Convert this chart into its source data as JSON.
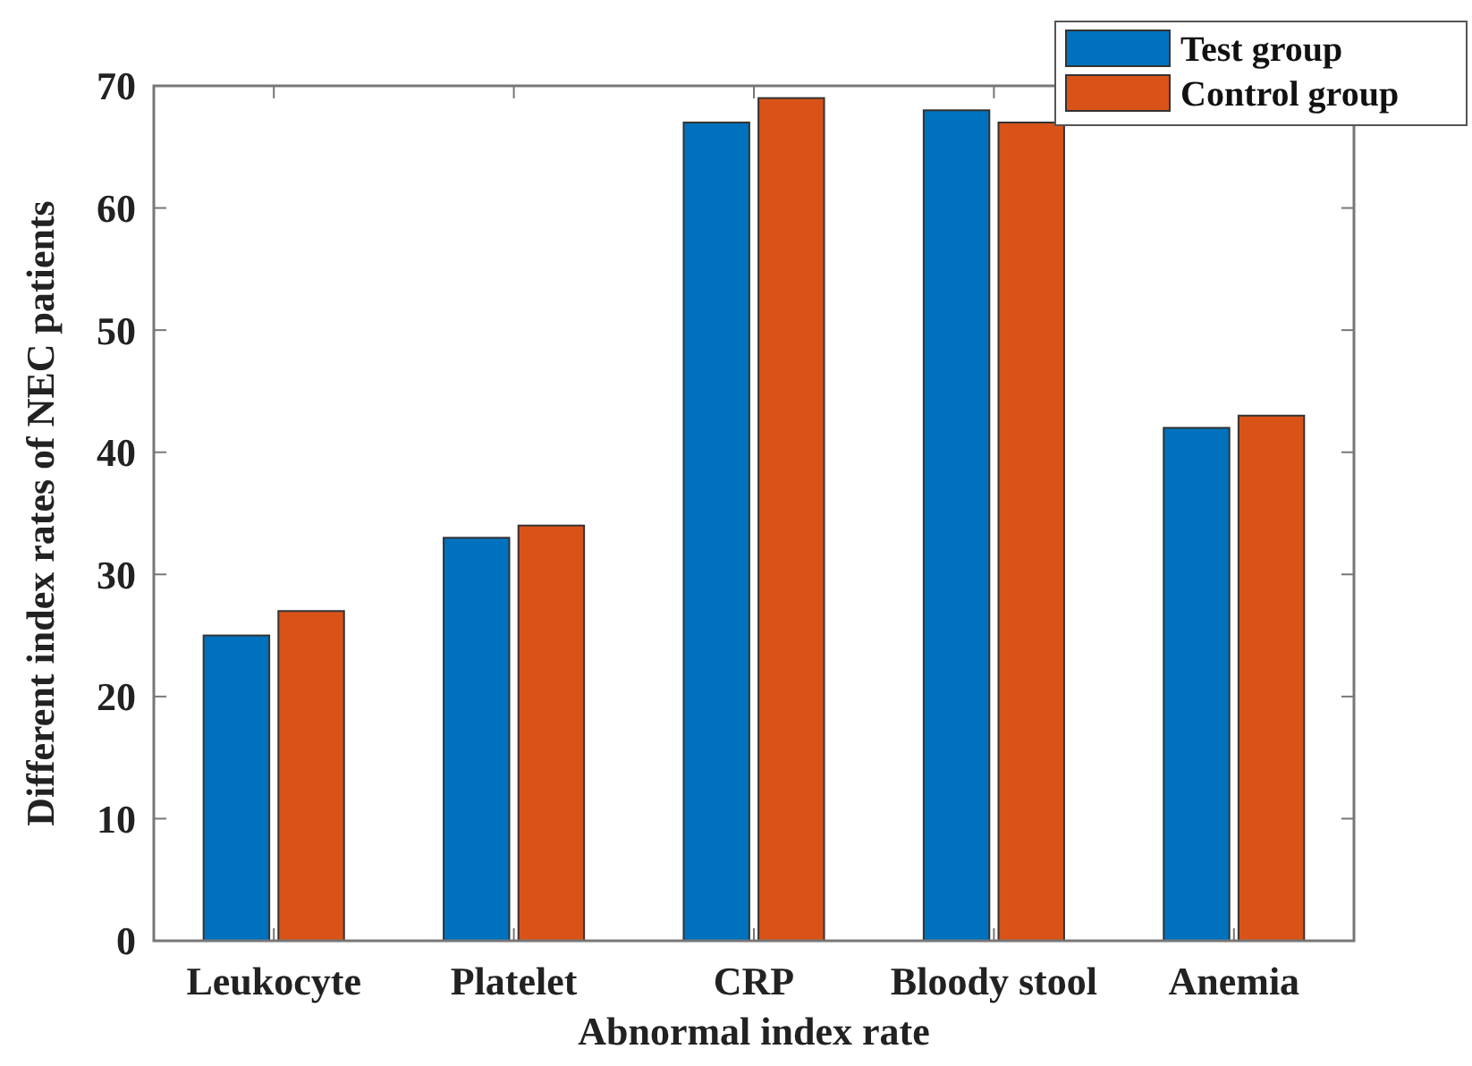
{
  "chart_data": {
    "type": "bar",
    "xlabel": "Abnormal index rate",
    "ylabel": "Different index rates of NEC patients",
    "categories": [
      "Leukocyte",
      "Platelet",
      "CRP",
      "Bloody stool",
      "Anemia"
    ],
    "series": [
      {
        "name": "Test group",
        "color": "#0072bd",
        "values": [
          25,
          33,
          67,
          68,
          42
        ]
      },
      {
        "name": "Control group",
        "color": "#d95319",
        "values": [
          27,
          34,
          69,
          67,
          43
        ]
      }
    ],
    "ylim": [
      0,
      70
    ],
    "yticks": [
      0,
      10,
      20,
      30,
      40,
      50,
      60,
      70
    ],
    "legend": "top right"
  }
}
